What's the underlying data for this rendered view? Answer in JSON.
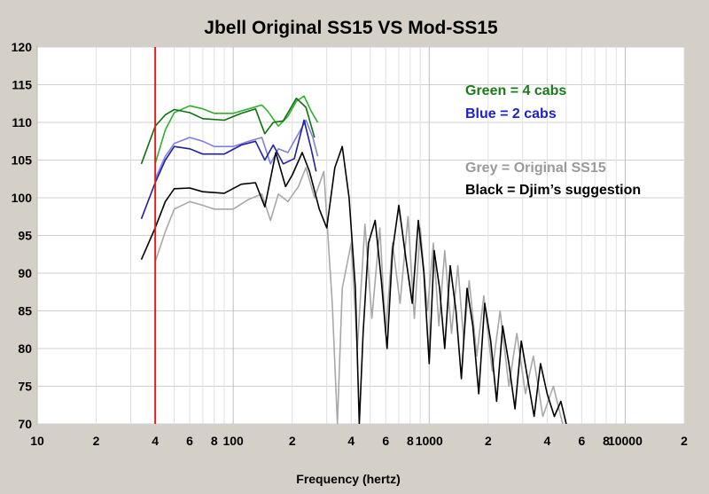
{
  "chart_data": {
    "type": "line",
    "title": "Jbell Original SS15 VS Mod-SS15",
    "xlabel": "Frequency (hertz)",
    "ylabel": "",
    "xscale": "log",
    "xlim": [
      10,
      20000
    ],
    "ylim": [
      70,
      120
    ],
    "grid": true,
    "marker_line": {
      "x": 40,
      "color": "#e02020"
    },
    "y_ticks": [
      70,
      75,
      80,
      85,
      90,
      95,
      100,
      105,
      110,
      115,
      120
    ],
    "x_ticks": [
      {
        "value": 10,
        "label": "10"
      },
      {
        "value": 20,
        "label": "2"
      },
      {
        "value": 40,
        "label": "4"
      },
      {
        "value": 60,
        "label": "6"
      },
      {
        "value": 80,
        "label": "8"
      },
      {
        "value": 100,
        "label": "100"
      },
      {
        "value": 200,
        "label": "2"
      },
      {
        "value": 400,
        "label": "4"
      },
      {
        "value": 600,
        "label": "6"
      },
      {
        "value": 800,
        "label": "8"
      },
      {
        "value": 1000,
        "label": "1000"
      },
      {
        "value": 2000,
        "label": "2"
      },
      {
        "value": 4000,
        "label": "4"
      },
      {
        "value": 6000,
        "label": "6"
      },
      {
        "value": 8000,
        "label": "8"
      },
      {
        "value": 10000,
        "label": "10000"
      },
      {
        "value": 20000,
        "label": "2"
      }
    ],
    "legend": [
      {
        "text": "Green = 4 cabs",
        "color": "#1a7a1a"
      },
      {
        "text": "Blue = 2 cabs",
        "color": "#2020c8"
      },
      {
        "text": "Grey = Original SS15",
        "color": "#9a9a9a"
      },
      {
        "text": "Black = Djim’s suggestion",
        "color": "#000000"
      }
    ],
    "legend_position": "top-right",
    "series": [
      {
        "color": "#30b030",
        "points": [
          [
            40,
            104.5
          ],
          [
            45,
            109
          ],
          [
            50,
            111.3
          ],
          [
            60,
            112.2
          ],
          [
            70,
            111.8
          ],
          [
            80,
            111.2
          ],
          [
            100,
            111.2
          ],
          [
            120,
            111.8
          ],
          [
            140,
            112.3
          ],
          [
            150,
            111.5
          ],
          [
            170,
            109.5
          ],
          [
            190,
            110.8
          ],
          [
            210,
            112.8
          ],
          [
            230,
            113.5
          ],
          [
            250,
            111.5
          ],
          [
            270,
            110
          ]
        ]
      },
      {
        "color": "#107010",
        "points": [
          [
            34,
            104.5
          ],
          [
            40,
            109.5
          ],
          [
            45,
            111
          ],
          [
            50,
            111.7
          ],
          [
            60,
            111.3
          ],
          [
            70,
            110.5
          ],
          [
            90,
            110.3
          ],
          [
            110,
            111.2
          ],
          [
            130,
            111.8
          ],
          [
            145,
            108.5
          ],
          [
            160,
            110
          ],
          [
            180,
            110.2
          ],
          [
            210,
            113.2
          ],
          [
            235,
            112
          ],
          [
            260,
            108
          ]
        ]
      },
      {
        "color": "#8080e0",
        "points": [
          [
            40,
            102.5
          ],
          [
            45,
            105.5
          ],
          [
            50,
            107.2
          ],
          [
            60,
            108
          ],
          [
            70,
            107.5
          ],
          [
            80,
            106.8
          ],
          [
            100,
            106.8
          ],
          [
            120,
            107.5
          ],
          [
            140,
            108
          ],
          [
            155,
            104.5
          ],
          [
            170,
            106.5
          ],
          [
            190,
            106
          ],
          [
            215,
            108.5
          ],
          [
            235,
            110.3
          ],
          [
            255,
            108
          ],
          [
            270,
            105.5
          ]
        ]
      },
      {
        "color": "#2020a0",
        "points": [
          [
            34,
            97.2
          ],
          [
            40,
            102
          ],
          [
            45,
            105
          ],
          [
            50,
            106.8
          ],
          [
            60,
            106.5
          ],
          [
            70,
            105.8
          ],
          [
            90,
            105.8
          ],
          [
            110,
            107
          ],
          [
            130,
            107.5
          ],
          [
            145,
            105
          ],
          [
            160,
            107
          ],
          [
            180,
            104.5
          ],
          [
            205,
            105.2
          ],
          [
            230,
            110.3
          ],
          [
            250,
            106.5
          ],
          [
            265,
            103.5
          ]
        ]
      },
      {
        "color": "#a8a8a8",
        "points": [
          [
            40,
            91.5
          ],
          [
            45,
            95.5
          ],
          [
            50,
            98.5
          ],
          [
            60,
            99.5
          ],
          [
            70,
            99
          ],
          [
            80,
            98.5
          ],
          [
            100,
            98.5
          ],
          [
            120,
            99.8
          ],
          [
            140,
            100.5
          ],
          [
            155,
            97
          ],
          [
            170,
            100.5
          ],
          [
            190,
            99.5
          ],
          [
            215,
            101.5
          ],
          [
            235,
            104
          ],
          [
            260,
            100
          ],
          [
            290,
            103.5
          ],
          [
            320,
            86
          ],
          [
            340,
            70
          ],
          [
            360,
            88
          ],
          [
            400,
            94
          ],
          [
            430,
            80
          ],
          [
            470,
            96.5
          ],
          [
            510,
            84
          ],
          [
            560,
            96
          ],
          [
            600,
            82
          ],
          [
            650,
            94
          ],
          [
            710,
            86
          ],
          [
            780,
            97.5
          ],
          [
            840,
            84
          ],
          [
            900,
            96
          ],
          [
            980,
            85
          ],
          [
            1050,
            94
          ],
          [
            1120,
            83
          ],
          [
            1200,
            93
          ],
          [
            1300,
            82
          ],
          [
            1400,
            91
          ],
          [
            1500,
            81
          ],
          [
            1600,
            89
          ],
          [
            1750,
            79
          ],
          [
            1900,
            87
          ],
          [
            2100,
            77
          ],
          [
            2300,
            85
          ],
          [
            2550,
            75
          ],
          [
            2800,
            82
          ],
          [
            3100,
            74
          ],
          [
            3400,
            79
          ],
          [
            3800,
            71
          ],
          [
            4300,
            75
          ],
          [
            4800,
            70
          ]
        ]
      },
      {
        "color": "#000000",
        "points": [
          [
            34,
            91.8
          ],
          [
            40,
            96
          ],
          [
            45,
            99.5
          ],
          [
            50,
            101.2
          ],
          [
            60,
            101.3
          ],
          [
            70,
            100.8
          ],
          [
            90,
            100.6
          ],
          [
            110,
            101.8
          ],
          [
            130,
            102
          ],
          [
            145,
            98.8
          ],
          [
            165,
            106
          ],
          [
            185,
            101.5
          ],
          [
            200,
            103
          ],
          [
            225,
            106
          ],
          [
            245,
            103.5
          ],
          [
            275,
            98.5
          ],
          [
            300,
            96
          ],
          [
            330,
            104
          ],
          [
            360,
            106.8
          ],
          [
            390,
            100
          ],
          [
            420,
            88
          ],
          [
            440,
            70
          ],
          [
            460,
            82
          ],
          [
            490,
            94
          ],
          [
            530,
            97
          ],
          [
            570,
            89
          ],
          [
            610,
            80
          ],
          [
            650,
            93
          ],
          [
            700,
            99
          ],
          [
            760,
            92
          ],
          [
            820,
            86
          ],
          [
            880,
            97
          ],
          [
            940,
            90
          ],
          [
            1000,
            78
          ],
          [
            1060,
            93
          ],
          [
            1130,
            88
          ],
          [
            1200,
            80
          ],
          [
            1280,
            91
          ],
          [
            1370,
            85
          ],
          [
            1460,
            76
          ],
          [
            1560,
            88
          ],
          [
            1670,
            83
          ],
          [
            1790,
            74
          ],
          [
            1920,
            86
          ],
          [
            2060,
            81
          ],
          [
            2210,
            73
          ],
          [
            2370,
            83
          ],
          [
            2550,
            78
          ],
          [
            2740,
            72
          ],
          [
            2950,
            81
          ],
          [
            3180,
            76
          ],
          [
            3430,
            71
          ],
          [
            3700,
            78
          ],
          [
            4000,
            74
          ],
          [
            4350,
            71
          ],
          [
            4700,
            73
          ],
          [
            5000,
            70
          ]
        ]
      }
    ]
  }
}
